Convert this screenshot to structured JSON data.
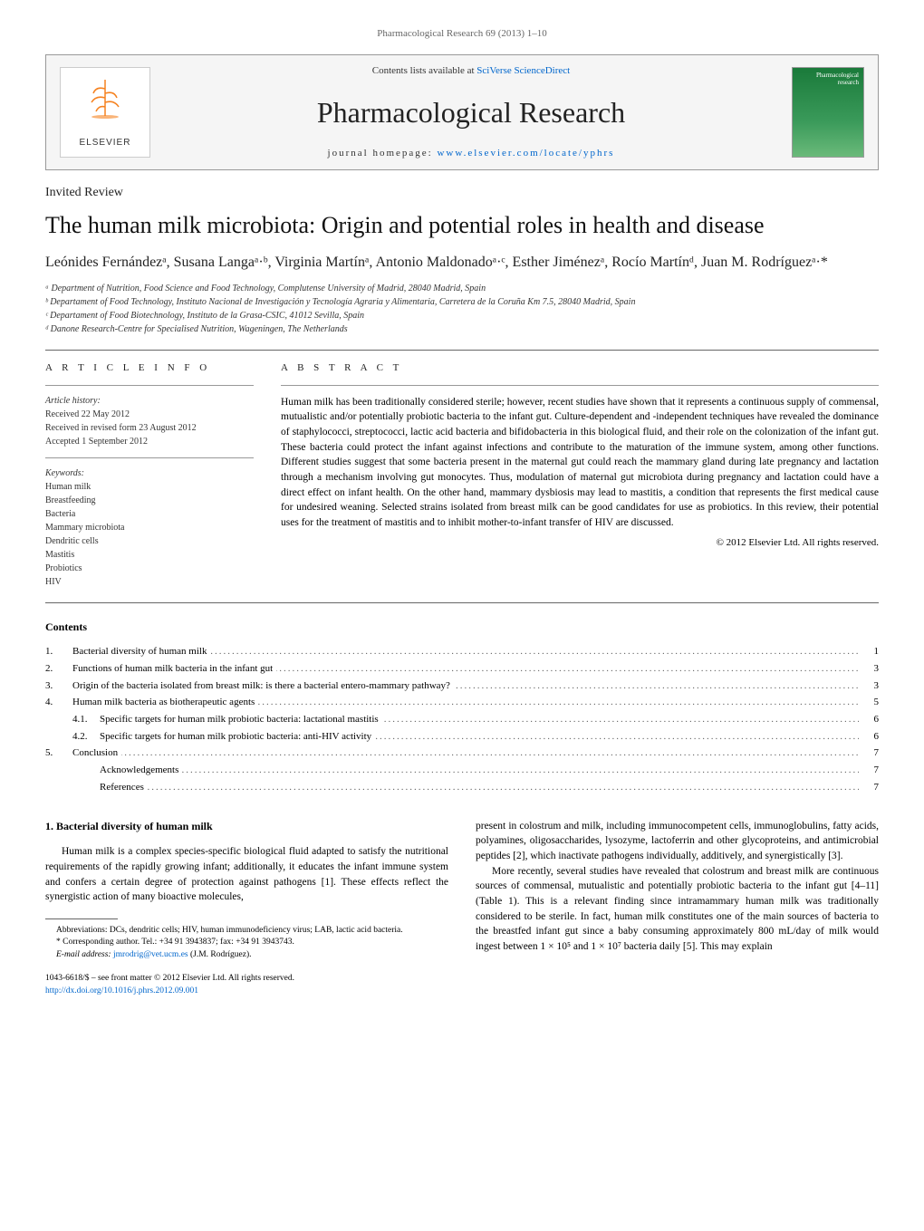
{
  "journal_ref": "Pharmacological Research 69 (2013) 1–10",
  "header": {
    "publisher": "ELSEVIER",
    "contents_available": "Contents lists available at",
    "sciverse": "SciVerse ScienceDirect",
    "journal_title": "Pharmacological Research",
    "homepage_prefix": "journal homepage:",
    "homepage_url": "www.elsevier.com/locate/yphrs",
    "cover_label": "Pharmacological research"
  },
  "article_type": "Invited Review",
  "title": "The human milk microbiota: Origin and potential roles in health and disease",
  "authors": "Leónides Fernándezᵃ, Susana Langaᵃ·ᵇ, Virginia Martínᵃ, Antonio Maldonadoᵃ·ᶜ, Esther Jiménezᵃ, Rocío Martínᵈ, Juan M. Rodríguezᵃ·*",
  "affiliations": {
    "a": "ᵃ Department of Nutrition, Food Science and Food Technology, Complutense University of Madrid, 28040 Madrid, Spain",
    "b": "ᵇ Departament of Food Technology, Instituto Nacional de Investigación y Tecnología Agraria y Alimentaria, Carretera de la Coruña Km 7.5, 28040 Madrid, Spain",
    "c": "ᶜ Departament of Food Biotechnology, Instituto de la Grasa-CSIC, 41012 Sevilla, Spain",
    "d": "ᵈ Danone Research-Centre for Specialised Nutrition, Wageningen, The Netherlands"
  },
  "article_info": {
    "heading": "A R T I C L E   I N F O",
    "history_label": "Article history:",
    "received": "Received 22 May 2012",
    "revised": "Received in revised form 23 August 2012",
    "accepted": "Accepted 1 September 2012",
    "keywords_label": "Keywords:",
    "keywords": [
      "Human milk",
      "Breastfeeding",
      "Bacteria",
      "Mammary microbiota",
      "Dendritic cells",
      "Mastitis",
      "Probiotics",
      "HIV"
    ]
  },
  "abstract": {
    "heading": "A B S T R A C T",
    "text": "Human milk has been traditionally considered sterile; however, recent studies have shown that it represents a continuous supply of commensal, mutualistic and/or potentially probiotic bacteria to the infant gut. Culture-dependent and -independent techniques have revealed the dominance of staphylococci, streptococci, lactic acid bacteria and bifidobacteria in this biological fluid, and their role on the colonization of the infant gut. These bacteria could protect the infant against infections and contribute to the maturation of the immune system, among other functions. Different studies suggest that some bacteria present in the maternal gut could reach the mammary gland during late pregnancy and lactation through a mechanism involving gut monocytes. Thus, modulation of maternal gut microbiota during pregnancy and lactation could have a direct effect on infant health. On the other hand, mammary dysbiosis may lead to mastitis, a condition that represents the first medical cause for undesired weaning. Selected strains isolated from breast milk can be good candidates for use as probiotics. In this review, their potential uses for the treatment of mastitis and to inhibit mother-to-infant transfer of HIV are discussed.",
    "copyright": "© 2012 Elsevier Ltd. All rights reserved."
  },
  "contents_label": "Contents",
  "toc": [
    {
      "num": "1.",
      "title": "Bacterial diversity of human milk",
      "page": "1"
    },
    {
      "num": "2.",
      "title": "Functions of human milk bacteria in the infant gut",
      "page": "3"
    },
    {
      "num": "3.",
      "title": "Origin of the bacteria isolated from breast milk: is there a bacterial entero-mammary pathway?",
      "page": "3"
    },
    {
      "num": "4.",
      "title": "Human milk bacteria as biotherapeutic agents",
      "page": "5"
    },
    {
      "num": "4.1.",
      "title": "Specific targets for human milk probiotic bacteria: lactational mastitis",
      "page": "6",
      "sub": true
    },
    {
      "num": "4.2.",
      "title": "Specific targets for human milk probiotic bacteria: anti-HIV activity",
      "page": "6",
      "sub": true
    },
    {
      "num": "5.",
      "title": "Conclusion",
      "page": "7"
    },
    {
      "num": "",
      "title": "Acknowledgements",
      "page": "7",
      "sub": true
    },
    {
      "num": "",
      "title": "References",
      "page": "7",
      "sub": true
    }
  ],
  "section1": {
    "heading": "1. Bacterial diversity of human milk",
    "para1": "Human milk is a complex species-specific biological fluid adapted to satisfy the nutritional requirements of the rapidly growing infant; additionally, it educates the infant immune system and confers a certain degree of protection against pathogens [1]. These effects reflect the synergistic action of many bioactive molecules,",
    "para2a": "present in colostrum and milk, including immunocompetent cells, immunoglobulins, fatty acids, polyamines, oligosaccharides, lysozyme, lactoferrin and other glycoproteins, and antimicrobial peptides [2], which inactivate pathogens individually, additively, and synergistically [3].",
    "para2b": "More recently, several studies have revealed that colostrum and breast milk are continuous sources of commensal, mutualistic and potentially probiotic bacteria to the infant gut [4–11] (Table 1). This is a relevant finding since intramammary human milk was traditionally considered to be sterile. In fact, human milk constitutes one of the main sources of bacteria to the breastfed infant gut since a baby consuming approximately 800 mL/day of milk would ingest between 1 × 10⁵ and 1 × 10⁷ bacteria daily [5]. This may explain"
  },
  "footnotes": {
    "abbrev": "Abbreviations: DCs, dendritic cells; HIV, human immunodeficiency virus; LAB, lactic acid bacteria.",
    "corresponding": "* Corresponding author. Tel.: +34 91 3943837; fax: +34 91 3943743.",
    "email_label": "E-mail address:",
    "email": "jmrodrig@vet.ucm.es",
    "email_name": "(J.M. Rodríguez).",
    "issn": "1043-6618/$ – see front matter © 2012 Elsevier Ltd. All rights reserved.",
    "doi": "http://dx.doi.org/10.1016/j.phrs.2012.09.001"
  }
}
